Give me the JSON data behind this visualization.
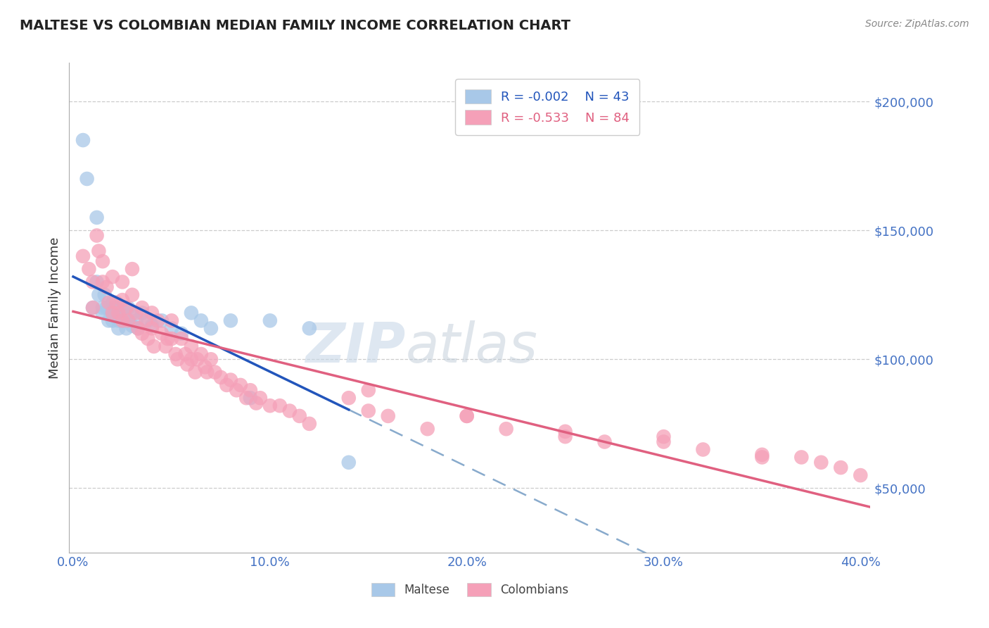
{
  "title": "MALTESE VS COLOMBIAN MEDIAN FAMILY INCOME CORRELATION CHART",
  "source": "Source: ZipAtlas.com",
  "ylabel": "Median Family Income",
  "xlim": [
    -0.002,
    0.405
  ],
  "ylim": [
    25000,
    215000
  ],
  "yticks": [
    50000,
    100000,
    150000,
    200000
  ],
  "ytick_labels": [
    "$50,000",
    "$100,000",
    "$150,000",
    "$200,000"
  ],
  "xticks": [
    0.0,
    0.1,
    0.2,
    0.3,
    0.4
  ],
  "xtick_labels": [
    "0.0%",
    "10.0%",
    "20.0%",
    "30.0%",
    "40.0%"
  ],
  "maltese_color": "#a8c8e8",
  "colombian_color": "#f5a0b8",
  "maltese_line_color": "#2255bb",
  "colombian_line_color": "#e06080",
  "dashed_line_color": "#88aacc",
  "R_maltese": -0.002,
  "N_maltese": 43,
  "R_colombian": -0.533,
  "N_colombian": 84,
  "watermark": "ZIPatlas",
  "background_color": "#ffffff",
  "grid_color": "#cccccc",
  "axis_color": "#aaaaaa",
  "title_color": "#222222",
  "ylabel_color": "#333333",
  "tick_label_color": "#4472c4",
  "maltese_x": [
    0.005,
    0.007,
    0.01,
    0.012,
    0.012,
    0.013,
    0.015,
    0.015,
    0.016,
    0.017,
    0.018,
    0.02,
    0.02,
    0.02,
    0.021,
    0.022,
    0.023,
    0.023,
    0.024,
    0.025,
    0.025,
    0.026,
    0.027,
    0.028,
    0.028,
    0.03,
    0.03,
    0.032,
    0.033,
    0.035,
    0.038,
    0.04,
    0.045,
    0.05,
    0.055,
    0.06,
    0.065,
    0.07,
    0.08,
    0.09,
    0.1,
    0.12,
    0.14
  ],
  "maltese_y": [
    185000,
    170000,
    120000,
    155000,
    130000,
    125000,
    120000,
    118000,
    125000,
    120000,
    115000,
    122000,
    118000,
    115000,
    120000,
    118000,
    115000,
    112000,
    118000,
    120000,
    115000,
    118000,
    112000,
    115000,
    120000,
    118000,
    113000,
    115000,
    112000,
    118000,
    115000,
    113000,
    115000,
    112000,
    110000,
    118000,
    115000,
    112000,
    115000,
    85000,
    115000,
    112000,
    60000
  ],
  "colombian_x": [
    0.005,
    0.008,
    0.01,
    0.01,
    0.012,
    0.013,
    0.015,
    0.015,
    0.017,
    0.018,
    0.02,
    0.02,
    0.022,
    0.023,
    0.025,
    0.025,
    0.025,
    0.027,
    0.028,
    0.03,
    0.03,
    0.032,
    0.033,
    0.035,
    0.035,
    0.037,
    0.038,
    0.04,
    0.04,
    0.041,
    0.043,
    0.045,
    0.047,
    0.048,
    0.05,
    0.05,
    0.052,
    0.053,
    0.055,
    0.057,
    0.058,
    0.06,
    0.06,
    0.062,
    0.063,
    0.065,
    0.067,
    0.068,
    0.07,
    0.072,
    0.075,
    0.078,
    0.08,
    0.083,
    0.085,
    0.088,
    0.09,
    0.093,
    0.095,
    0.1,
    0.105,
    0.11,
    0.115,
    0.12,
    0.14,
    0.15,
    0.16,
    0.18,
    0.2,
    0.22,
    0.25,
    0.27,
    0.3,
    0.32,
    0.35,
    0.37,
    0.38,
    0.39,
    0.15,
    0.2,
    0.25,
    0.3,
    0.35,
    0.4
  ],
  "colombian_y": [
    140000,
    135000,
    130000,
    120000,
    148000,
    142000,
    138000,
    130000,
    128000,
    122000,
    132000,
    118000,
    122000,
    118000,
    130000,
    123000,
    115000,
    120000,
    115000,
    135000,
    125000,
    118000,
    112000,
    120000,
    110000,
    115000,
    108000,
    118000,
    112000,
    105000,
    115000,
    110000,
    105000,
    108000,
    115000,
    108000,
    102000,
    100000,
    108000,
    102000,
    98000,
    105000,
    100000,
    95000,
    100000,
    102000,
    97000,
    95000,
    100000,
    95000,
    93000,
    90000,
    92000,
    88000,
    90000,
    85000,
    88000,
    83000,
    85000,
    82000,
    82000,
    80000,
    78000,
    75000,
    85000,
    80000,
    78000,
    73000,
    78000,
    73000,
    70000,
    68000,
    68000,
    65000,
    63000,
    62000,
    60000,
    58000,
    88000,
    78000,
    72000,
    70000,
    62000,
    55000
  ]
}
